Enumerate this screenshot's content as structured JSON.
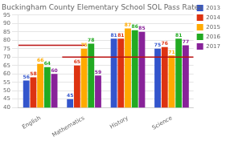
{
  "chart_data": {
    "type": "bar",
    "title": "Buckingham County Elementary School SOL Pass Rates",
    "categories": [
      "English",
      "Mathematics",
      "History",
      "Science"
    ],
    "series": [
      {
        "name": "2013",
        "color": "#3355cc",
        "values": [
          56,
          45,
          81,
          75
        ]
      },
      {
        "name": "2014",
        "color": "#dd3311",
        "values": [
          58,
          65,
          81,
          76
        ]
      },
      {
        "name": "2015",
        "color": "#ffaa00",
        "values": [
          66,
          75,
          87,
          71
        ]
      },
      {
        "name": "2016",
        "color": "#22aa22",
        "values": [
          64,
          78,
          86,
          81
        ]
      },
      {
        "name": "2017",
        "color": "#882299",
        "values": [
          60,
          59,
          85,
          77
        ]
      }
    ],
    "reference_lines": [
      {
        "value": 77,
        "color": "#bb1111"
      },
      {
        "value": 70,
        "color": "#bb1111"
      }
    ],
    "ylim": [
      40,
      95
    ],
    "yticks": [
      40,
      45,
      50,
      55,
      60,
      65,
      70,
      75,
      80,
      85,
      90,
      95
    ],
    "grid": true,
    "legend": "upper right",
    "data_labels": true
  }
}
